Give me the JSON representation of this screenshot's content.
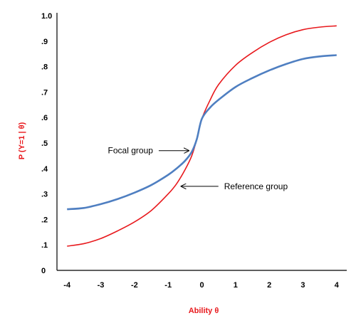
{
  "chart_data": {
    "type": "line",
    "title": "",
    "xlabel": "Ability θ",
    "ylabel": "P (Y=1 | θ)",
    "xlim": [
      -4.3,
      4.3
    ],
    "ylim": [
      0,
      1.0
    ],
    "xticks": [
      "-4",
      "-3",
      "-2",
      "-1",
      "0",
      "1",
      "2",
      "3",
      "4"
    ],
    "xtick_values": [
      -4,
      -3,
      -2,
      -1,
      0,
      1,
      2,
      3,
      4
    ],
    "yticks": [
      "0",
      ".1",
      ".2",
      ".3",
      ".4",
      ".5",
      ".6",
      ".7",
      ".8",
      ".9",
      "1.0"
    ],
    "ytick_values": [
      0,
      0.1,
      0.2,
      0.3,
      0.4,
      0.5,
      0.6,
      0.7,
      0.8,
      0.9,
      1.0
    ],
    "grid": false,
    "series": [
      {
        "color": "#e8191d",
        "x": [
          -4,
          -3.5,
          -3,
          -2.5,
          -2,
          -1.5,
          -1,
          -0.75,
          -0.5,
          -0.3,
          -0.15,
          0,
          0.25,
          0.5,
          1,
          1.5,
          2,
          2.5,
          3,
          3.5,
          4
        ],
        "y": [
          0.095,
          0.105,
          0.125,
          0.155,
          0.19,
          0.235,
          0.3,
          0.34,
          0.395,
          0.45,
          0.515,
          0.595,
          0.67,
          0.73,
          0.805,
          0.855,
          0.895,
          0.925,
          0.945,
          0.955,
          0.96
        ]
      },
      {
        "color": "#4f7fc1",
        "x": [
          -4,
          -3.5,
          -3,
          -2.5,
          -2,
          -1.5,
          -1,
          -0.75,
          -0.5,
          -0.3,
          -0.15,
          0,
          0.25,
          0.5,
          1,
          1.5,
          2,
          2.5,
          3,
          3.5,
          4
        ],
        "y": [
          0.24,
          0.245,
          0.26,
          0.28,
          0.305,
          0.335,
          0.375,
          0.4,
          0.43,
          0.465,
          0.515,
          0.595,
          0.64,
          0.67,
          0.72,
          0.755,
          0.785,
          0.81,
          0.83,
          0.84,
          0.845
        ]
      }
    ],
    "annotations": [
      {
        "text": "Focal group",
        "arrow_to_x": -0.35,
        "arrow_to_y": 0.47,
        "side": "left"
      },
      {
        "text": "Reference group",
        "arrow_to_x": -0.65,
        "arrow_to_y": 0.33,
        "side": "right"
      }
    ]
  }
}
